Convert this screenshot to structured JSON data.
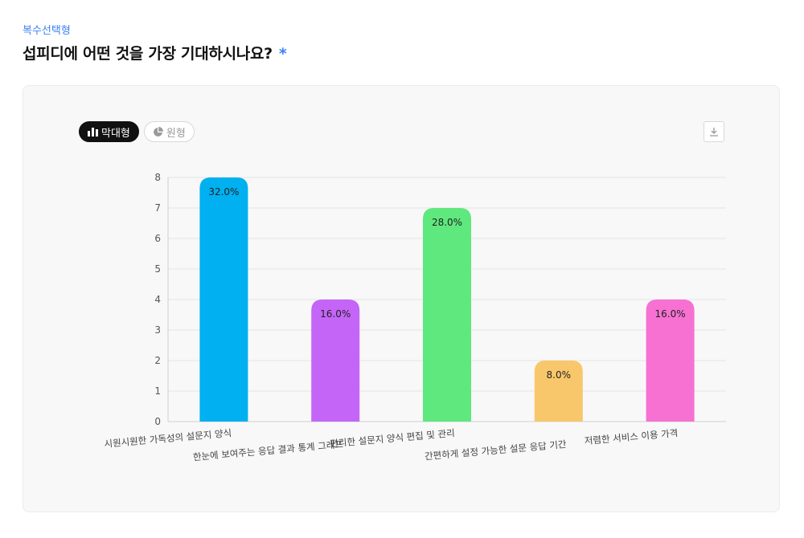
{
  "question": {
    "type_label": "복수선택형",
    "title": "섭피디에 어떤 것을 가장 기대하시나요?",
    "required_mark": "*"
  },
  "toolbar": {
    "tabs": [
      {
        "label": "막대형",
        "icon": "bar-chart-icon",
        "active": true
      },
      {
        "label": "원형",
        "icon": "pie-chart-icon",
        "active": false
      }
    ],
    "download_icon": "download-icon"
  },
  "chart_data": {
    "type": "bar",
    "categories": [
      "시원시원한 가독성의 설문지 양식",
      "한눈에 보여주는 응답 결과 통계 그래프",
      "편리한 설문지 양식 편집 및 관리",
      "간편하게 설정 가능한 설문 응답 기간",
      "저렴한 서비스 이용 가격"
    ],
    "values": [
      8,
      4,
      7,
      2,
      4
    ],
    "data_labels": [
      "32.0%",
      "16.0%",
      "28.0%",
      "8.0%",
      "16.0%"
    ],
    "colors": [
      "#00b0f0",
      "#c465f7",
      "#5fe87e",
      "#f9c76b",
      "#f671d2"
    ],
    "ylim": [
      0,
      8
    ],
    "yticks": [
      0,
      1,
      2,
      3,
      4,
      5,
      6,
      7,
      8
    ],
    "grid": true,
    "xlabel": "",
    "ylabel": ""
  }
}
